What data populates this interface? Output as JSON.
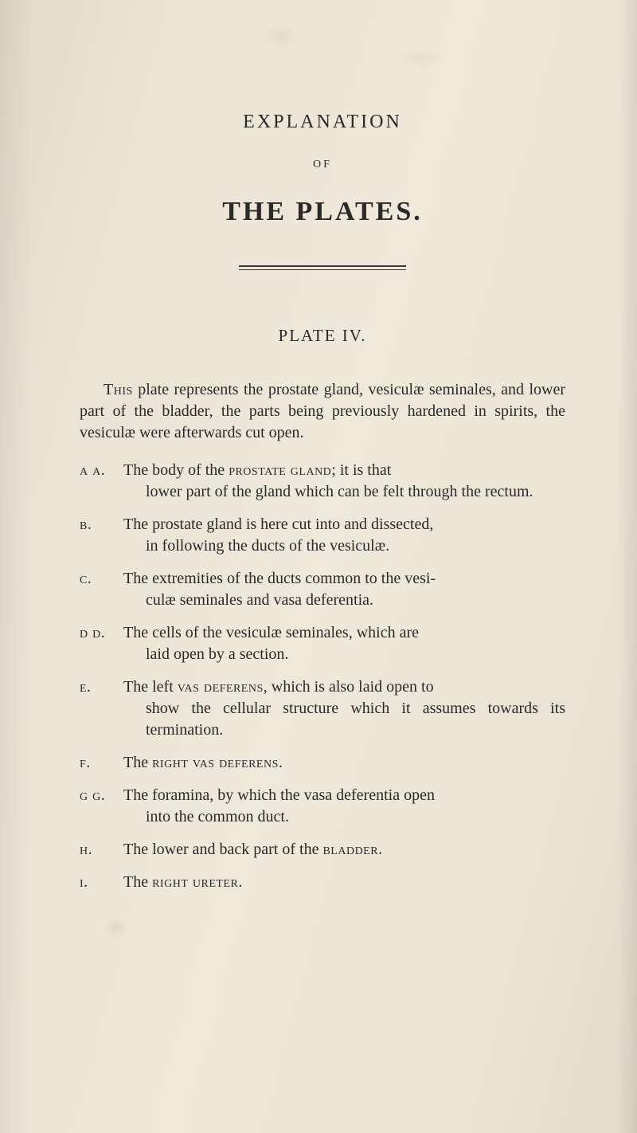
{
  "colors": {
    "paper_bg": "#e8e3d5",
    "text": "#2a2a28",
    "rule": "#3a3a36"
  },
  "typography": {
    "body_fontsize_pt": 15,
    "title_explanation_fontsize_pt": 18,
    "title_plates_fontsize_pt": 26,
    "plate_heading_fontsize_pt": 16,
    "font_family": "Georgia / old-style serif"
  },
  "heading": {
    "line1": "EXPLANATION",
    "of": "OF",
    "line2": "THE PLATES.",
    "plate": "PLATE IV."
  },
  "intro": {
    "lead": "This",
    "text": " plate represents the prostate gland, vesiculæ seminales, and lower part of the bladder, the parts being previously hardened in spirits, the vesiculæ were afterwards cut open."
  },
  "items": [
    {
      "label": "a a.",
      "line1": "The body of the ",
      "sc1": "prostate gland",
      "line1b": "; it is that",
      "cont": "lower part of the gland which can be felt through the rectum."
    },
    {
      "label": "b.",
      "line1": "The prostate gland is here cut into and dissected,",
      "cont": "in following the ducts of the vesiculæ."
    },
    {
      "label": "c.",
      "line1": "The extremities of the ducts common to the vesi-",
      "cont": "culæ seminales and vasa deferentia."
    },
    {
      "label": "d d.",
      "line1": "The cells of the vesiculæ seminales, which are",
      "cont": "laid open by a section."
    },
    {
      "label": "e.",
      "line1": "The left ",
      "sc1": "vas deferens",
      "line1b": ", which is also laid open to",
      "cont": "show the cellular structure which it assumes towards its termination."
    },
    {
      "label": "f.",
      "line1": "The ",
      "sc1": "right vas deferens",
      "line1b": "."
    },
    {
      "label": "g g.",
      "line1": "The foramina, by which the vasa deferentia open",
      "cont": "into the common duct."
    },
    {
      "label": "h.",
      "line1": "The lower and back part of the ",
      "sc1": "bladder",
      "line1b": "."
    },
    {
      "label": "i.",
      "line1": "The ",
      "sc1": "right ureter",
      "line1b": "."
    }
  ]
}
